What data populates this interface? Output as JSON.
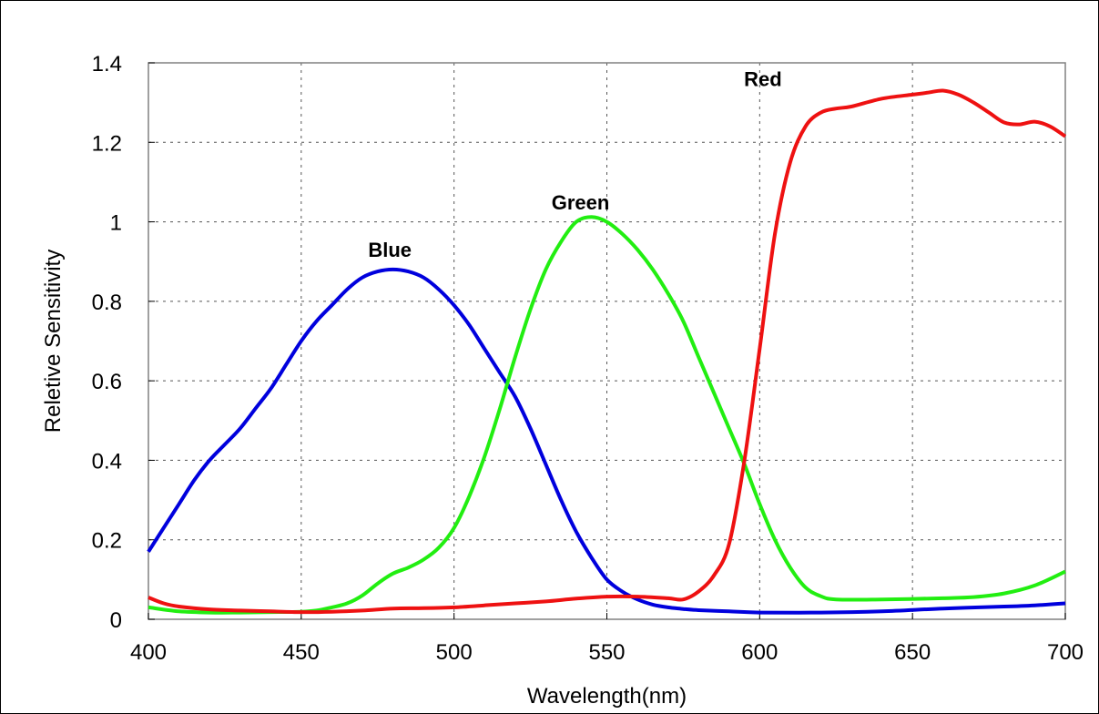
{
  "chart_data": {
    "type": "line",
    "title": "",
    "xlabel": "Wavelength(nm)",
    "ylabel": "Reletive Sensitivity",
    "xlim": [
      400,
      700
    ],
    "ylim": [
      0,
      1.4
    ],
    "xticks": [
      400,
      450,
      500,
      550,
      600,
      650,
      700
    ],
    "yticks": [
      0,
      0.2,
      0.4,
      0.6,
      0.8,
      1,
      1.2,
      1.4
    ],
    "ytick_labels": [
      "0",
      "0.2",
      "0.4",
      "0.6",
      "0.8",
      "1",
      "1.2",
      "1.4"
    ],
    "grid": true,
    "legend": "none",
    "series": [
      {
        "name": "Blue",
        "color": "#0000dd",
        "label_at": [
          485,
          0.93
        ],
        "points": [
          [
            400,
            0.17
          ],
          [
            405,
            0.23
          ],
          [
            410,
            0.29
          ],
          [
            415,
            0.35
          ],
          [
            420,
            0.4
          ],
          [
            425,
            0.44
          ],
          [
            430,
            0.48
          ],
          [
            435,
            0.53
          ],
          [
            440,
            0.58
          ],
          [
            445,
            0.64
          ],
          [
            450,
            0.7
          ],
          [
            455,
            0.75
          ],
          [
            460,
            0.79
          ],
          [
            465,
            0.83
          ],
          [
            470,
            0.86
          ],
          [
            475,
            0.875
          ],
          [
            480,
            0.88
          ],
          [
            485,
            0.875
          ],
          [
            490,
            0.86
          ],
          [
            495,
            0.83
          ],
          [
            500,
            0.79
          ],
          [
            505,
            0.74
          ],
          [
            510,
            0.68
          ],
          [
            515,
            0.62
          ],
          [
            520,
            0.56
          ],
          [
            525,
            0.48
          ],
          [
            530,
            0.39
          ],
          [
            535,
            0.3
          ],
          [
            540,
            0.22
          ],
          [
            545,
            0.155
          ],
          [
            550,
            0.1
          ],
          [
            555,
            0.07
          ],
          [
            560,
            0.05
          ],
          [
            565,
            0.037
          ],
          [
            570,
            0.03
          ],
          [
            575,
            0.026
          ],
          [
            580,
            0.023
          ],
          [
            590,
            0.02
          ],
          [
            600,
            0.017
          ],
          [
            620,
            0.017
          ],
          [
            640,
            0.02
          ],
          [
            660,
            0.027
          ],
          [
            680,
            0.032
          ],
          [
            690,
            0.035
          ],
          [
            700,
            0.04
          ]
        ]
      },
      {
        "name": "Green",
        "color": "#22ee11",
        "label_at": [
          545,
          1.05
        ],
        "points": [
          [
            400,
            0.03
          ],
          [
            410,
            0.02
          ],
          [
            420,
            0.017
          ],
          [
            430,
            0.017
          ],
          [
            440,
            0.018
          ],
          [
            450,
            0.019
          ],
          [
            455,
            0.022
          ],
          [
            460,
            0.03
          ],
          [
            465,
            0.04
          ],
          [
            470,
            0.06
          ],
          [
            475,
            0.09
          ],
          [
            480,
            0.115
          ],
          [
            485,
            0.13
          ],
          [
            490,
            0.15
          ],
          [
            495,
            0.18
          ],
          [
            500,
            0.23
          ],
          [
            505,
            0.31
          ],
          [
            510,
            0.41
          ],
          [
            515,
            0.53
          ],
          [
            520,
            0.66
          ],
          [
            525,
            0.78
          ],
          [
            530,
            0.88
          ],
          [
            535,
            0.95
          ],
          [
            540,
            1.0
          ],
          [
            545,
            1.012
          ],
          [
            550,
            1.0
          ],
          [
            555,
            0.97
          ],
          [
            560,
            0.93
          ],
          [
            565,
            0.88
          ],
          [
            570,
            0.82
          ],
          [
            575,
            0.75
          ],
          [
            580,
            0.66
          ],
          [
            585,
            0.57
          ],
          [
            590,
            0.48
          ],
          [
            595,
            0.39
          ],
          [
            600,
            0.29
          ],
          [
            605,
            0.2
          ],
          [
            610,
            0.13
          ],
          [
            615,
            0.08
          ],
          [
            620,
            0.058
          ],
          [
            625,
            0.05
          ],
          [
            640,
            0.05
          ],
          [
            660,
            0.053
          ],
          [
            670,
            0.056
          ],
          [
            680,
            0.065
          ],
          [
            690,
            0.085
          ],
          [
            700,
            0.12
          ]
        ]
      },
      {
        "name": "Red",
        "color": "#ee1111",
        "label_at": [
          608,
          1.36
        ],
        "points": [
          [
            400,
            0.055
          ],
          [
            405,
            0.04
          ],
          [
            410,
            0.032
          ],
          [
            420,
            0.025
          ],
          [
            430,
            0.022
          ],
          [
            440,
            0.02
          ],
          [
            450,
            0.018
          ],
          [
            460,
            0.019
          ],
          [
            470,
            0.022
          ],
          [
            480,
            0.027
          ],
          [
            490,
            0.028
          ],
          [
            500,
            0.03
          ],
          [
            510,
            0.035
          ],
          [
            520,
            0.04
          ],
          [
            530,
            0.045
          ],
          [
            540,
            0.052
          ],
          [
            550,
            0.057
          ],
          [
            560,
            0.057
          ],
          [
            570,
            0.053
          ],
          [
            575,
            0.05
          ],
          [
            580,
            0.07
          ],
          [
            585,
            0.11
          ],
          [
            590,
            0.19
          ],
          [
            595,
            0.4
          ],
          [
            600,
            0.68
          ],
          [
            605,
            0.97
          ],
          [
            610,
            1.15
          ],
          [
            615,
            1.24
          ],
          [
            620,
            1.275
          ],
          [
            625,
            1.285
          ],
          [
            630,
            1.29
          ],
          [
            640,
            1.31
          ],
          [
            650,
            1.32
          ],
          [
            655,
            1.325
          ],
          [
            660,
            1.33
          ],
          [
            665,
            1.32
          ],
          [
            670,
            1.3
          ],
          [
            675,
            1.275
          ],
          [
            680,
            1.25
          ],
          [
            685,
            1.245
          ],
          [
            690,
            1.252
          ],
          [
            695,
            1.24
          ],
          [
            700,
            1.215
          ]
        ]
      }
    ]
  }
}
